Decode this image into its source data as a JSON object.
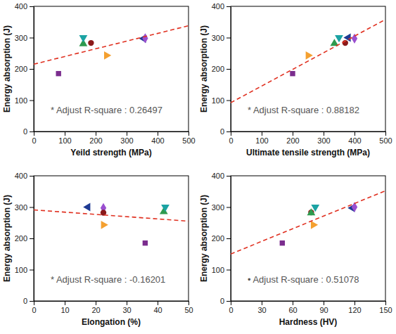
{
  "chart_data": [
    {
      "type": "scatter",
      "x_label": "Yeild strength (MPa)",
      "y_label": "Energy absorption (J)",
      "annotation": "* Adjust R-square : 0.26497",
      "xlim": [
        0,
        500
      ],
      "xticks": [
        0,
        100,
        200,
        300,
        400,
        500
      ],
      "ylim": [
        0,
        400
      ],
      "yticks": [
        0,
        100,
        200,
        300,
        400
      ],
      "series": [
        {
          "color": "#7b2d8e",
          "marker": "square",
          "x": [
            80
          ],
          "values": [
            185
          ]
        },
        {
          "color": "#2e9a4e",
          "marker": "triangle-up",
          "x": [
            160
          ],
          "values": [
            280
          ]
        },
        {
          "color": "#1ba3a3",
          "marker": "triangle-down",
          "x": [
            160
          ],
          "values": [
            300
          ]
        },
        {
          "color": "#8b1a1a",
          "marker": "circle",
          "x": [
            185
          ],
          "values": [
            283
          ]
        },
        {
          "color": "#f4a030",
          "marker": "triangle-right",
          "x": [
            235
          ],
          "values": [
            243
          ]
        },
        {
          "color": "#1f3a93",
          "marker": "triangle-left",
          "x": [
            355
          ],
          "values": [
            297
          ]
        },
        {
          "color": "#9a4fd0",
          "marker": "diamond",
          "x": [
            360
          ],
          "values": [
            298
          ]
        },
        {
          "type": "line",
          "color": "#e03020",
          "line_style": "dashed",
          "x": [
            0,
            500
          ],
          "values": [
            215,
            338
          ]
        }
      ]
    },
    {
      "type": "scatter",
      "x_label": "Ultimate tensile strength (MPa)",
      "y_label": "Energy absorption (J)",
      "annotation": "* Adjust R-square : 0.88182",
      "xlim": [
        0,
        500
      ],
      "xticks": [
        0,
        100,
        200,
        300,
        400,
        500
      ],
      "ylim": [
        0,
        400
      ],
      "yticks": [
        0,
        100,
        200,
        300,
        400
      ],
      "series": [
        {
          "color": "#7b2d8e",
          "marker": "square",
          "x": [
            200
          ],
          "values": [
            185
          ]
        },
        {
          "color": "#f4a030",
          "marker": "triangle-right",
          "x": [
            250
          ],
          "values": [
            243
          ]
        },
        {
          "color": "#2e9a4e",
          "marker": "triangle-up",
          "x": [
            335
          ],
          "values": [
            281
          ]
        },
        {
          "color": "#1ba3a3",
          "marker": "triangle-down",
          "x": [
            350
          ],
          "values": [
            300
          ]
        },
        {
          "color": "#8b1a1a",
          "marker": "circle",
          "x": [
            370
          ],
          "values": [
            283
          ]
        },
        {
          "color": "#1f3a93",
          "marker": "triangle-left",
          "x": [
            380
          ],
          "values": [
            300
          ]
        },
        {
          "color": "#9a4fd0",
          "marker": "diamond",
          "x": [
            400
          ],
          "values": [
            297
          ]
        },
        {
          "type": "line",
          "color": "#e03020",
          "line_style": "dashed",
          "x": [
            0,
            500
          ],
          "values": [
            92,
            358
          ]
        }
      ]
    },
    {
      "type": "scatter",
      "x_label": "Elongation (%)",
      "y_label": "Energy absorption (J)",
      "annotation": "* Adjust R-square : -0.16201",
      "xlim": [
        0,
        50
      ],
      "xticks": [
        0,
        10,
        20,
        30,
        40,
        50
      ],
      "ylim": [
        0,
        400
      ],
      "yticks": [
        0,
        100,
        200,
        300,
        400
      ],
      "series": [
        {
          "color": "#1f3a93",
          "marker": "triangle-left",
          "x": [
            17.5
          ],
          "values": [
            300
          ]
        },
        {
          "color": "#9a4fd0",
          "marker": "diamond",
          "x": [
            22.5
          ],
          "values": [
            297
          ]
        },
        {
          "color": "#8b1a1a",
          "marker": "circle",
          "x": [
            22.5
          ],
          "values": [
            282
          ]
        },
        {
          "color": "#f4a030",
          "marker": "triangle-right",
          "x": [
            22.5
          ],
          "values": [
            243
          ]
        },
        {
          "color": "#7b2d8e",
          "marker": "square",
          "x": [
            36
          ],
          "values": [
            185
          ]
        },
        {
          "color": "#2e9a4e",
          "marker": "triangle-up",
          "x": [
            42
          ],
          "values": [
            285
          ]
        },
        {
          "color": "#1ba3a3",
          "marker": "triangle-down",
          "x": [
            42.5
          ],
          "values": [
            300
          ]
        },
        {
          "type": "line",
          "color": "#e03020",
          "line_style": "dashed",
          "x": [
            0,
            50
          ],
          "values": [
            291,
            255
          ]
        }
      ]
    },
    {
      "type": "scatter",
      "x_label": "Hardness (HV)",
      "y_label": "Energy absorption (J)",
      "annotation": "• Adjust R-square : 0.51078",
      "xlim": [
        0,
        150
      ],
      "xticks": [
        0,
        30,
        60,
        90,
        120,
        150
      ],
      "ylim": [
        0,
        400
      ],
      "yticks": [
        0,
        100,
        200,
        300,
        400
      ],
      "series": [
        {
          "color": "#7b2d8e",
          "marker": "square",
          "x": [
            50
          ],
          "values": [
            185
          ]
        },
        {
          "color": "#f4a030",
          "marker": "triangle-right",
          "x": [
            80
          ],
          "values": [
            243
          ]
        },
        {
          "color": "#8b1a1a",
          "marker": "circle",
          "x": [
            78
          ],
          "values": [
            283
          ]
        },
        {
          "color": "#2e9a4e",
          "marker": "triangle-up",
          "x": [
            78
          ],
          "values": [
            281
          ]
        },
        {
          "color": "#1ba3a3",
          "marker": "triangle-down",
          "x": [
            82
          ],
          "values": [
            300
          ]
        },
        {
          "color": "#1f3a93",
          "marker": "triangle-left",
          "x": [
            118
          ],
          "values": [
            297
          ]
        },
        {
          "color": "#9a4fd0",
          "marker": "diamond",
          "x": [
            120
          ],
          "values": [
            300
          ]
        },
        {
          "type": "line",
          "color": "#e03020",
          "line_style": "dashed",
          "x": [
            0,
            150
          ],
          "values": [
            150,
            352
          ]
        }
      ]
    }
  ]
}
